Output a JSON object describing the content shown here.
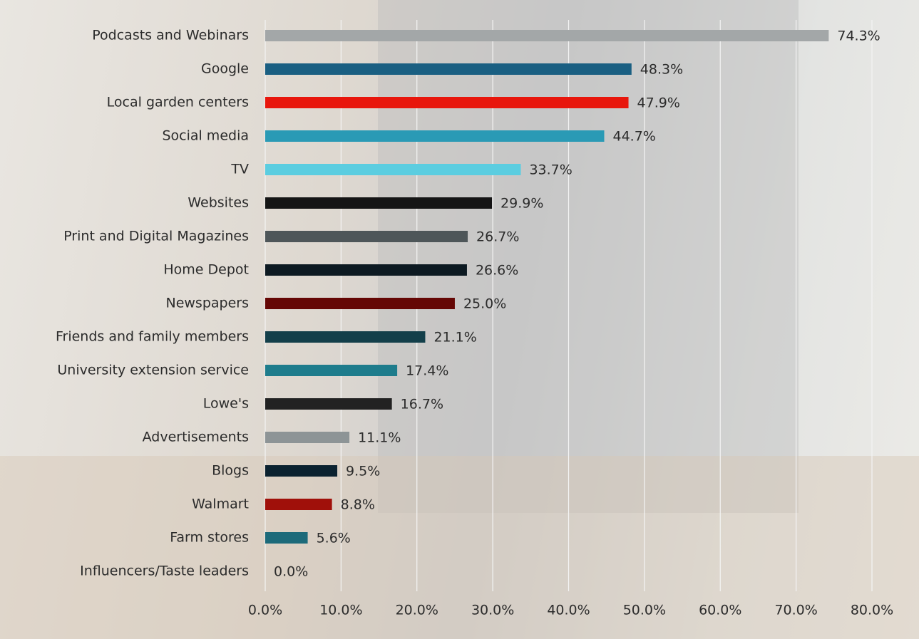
{
  "chart_data": {
    "type": "bar",
    "orientation": "horizontal",
    "categories": [
      "Podcasts and Webinars",
      "Google",
      "Local garden centers",
      "Social media",
      "TV",
      "Websites",
      "Print and Digital Magazines",
      "Home Depot",
      "Newspapers",
      "Friends and family members",
      "University extension service",
      "Lowe's",
      "Advertisements",
      "Blogs",
      "Walmart",
      "Farm stores",
      "Influencers/Taste leaders"
    ],
    "values": [
      74.3,
      48.3,
      47.9,
      44.7,
      33.7,
      29.9,
      26.7,
      26.6,
      25.0,
      21.1,
      17.4,
      16.7,
      11.1,
      9.5,
      8.8,
      5.6,
      0.0
    ],
    "value_labels": [
      "74.3%",
      "48.3%",
      "47.9%",
      "44.7%",
      "33.7%",
      "29.9%",
      "26.7%",
      "26.6%",
      "25.0%",
      "21.1%",
      "17.4%",
      "16.7%",
      "11.1%",
      "9.5%",
      "8.8%",
      "5.6%",
      "0.0%"
    ],
    "colors": [
      "#a3a7a8",
      "#1a5f82",
      "#e8160c",
      "#2a9ab5",
      "#5bcde0",
      "#151515",
      "#4e5659",
      "#0d1a22",
      "#650705",
      "#133f4a",
      "#1e7c8c",
      "#222222",
      "#8d9496",
      "#0b2230",
      "#a0100a",
      "#1c6a7a",
      "#888888"
    ],
    "xlim": [
      0,
      80
    ],
    "xticks": [
      {
        "value": 0,
        "label": "0.0%"
      },
      {
        "value": 10,
        "label": "10.0%"
      },
      {
        "value": 20,
        "label": "20.0%"
      },
      {
        "value": 30,
        "label": "30.0%"
      },
      {
        "value": 40,
        "label": "40.0%"
      },
      {
        "value": 50,
        "label": "50.0%"
      },
      {
        "value": 60,
        "label": "60.0%"
      },
      {
        "value": 70,
        "label": "70.0%"
      },
      {
        "value": 80,
        "label": "80.0%"
      }
    ],
    "grid": true
  }
}
